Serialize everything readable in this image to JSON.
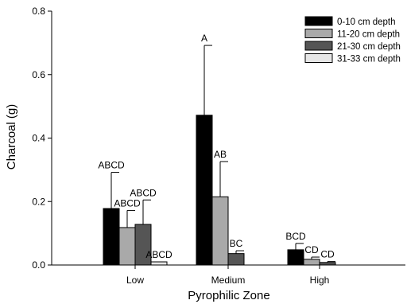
{
  "chart_data": {
    "type": "bar",
    "xlabel": "Pyrophilic Zone",
    "ylabel": "Charcoal (g)",
    "ylim": [
      0,
      0.8
    ],
    "yticks": [
      0.0,
      0.2,
      0.4,
      0.6,
      0.8
    ],
    "ytick_labels": [
      "0.0",
      "0.2",
      "0.4",
      "0.6",
      "0.8"
    ],
    "categories": [
      "Low",
      "Medium",
      "High"
    ],
    "legend_position": "top-right",
    "grid": false,
    "error_bars": "upper",
    "series": [
      {
        "name": "0-10 cm depth",
        "color": "#000000",
        "values": [
          0.178,
          0.472,
          0.048
        ],
        "errors": [
          0.114,
          0.22,
          0.02
        ],
        "labels": [
          "ABCD",
          "A",
          "BCD"
        ]
      },
      {
        "name": "11-20 cm depth",
        "color": "#a9a9a9",
        "values": [
          0.118,
          0.215,
          0.018
        ],
        "errors": [
          0.054,
          0.111,
          0.007
        ],
        "labels": [
          "ABCD",
          "AB",
          "CD"
        ]
      },
      {
        "name": "21-30 cm depth",
        "color": "#555555",
        "values": [
          0.128,
          0.036,
          0.008
        ],
        "errors": [
          0.077,
          0.009,
          0.003
        ],
        "labels": [
          "ABCD",
          "BC",
          "CD"
        ]
      },
      {
        "name": "31-33 cm depth",
        "color": "#e6e6e6",
        "values": [
          0.01,
          null,
          null
        ],
        "errors": [
          0,
          null,
          null
        ],
        "labels": [
          "ABCD",
          null,
          null
        ]
      }
    ]
  }
}
